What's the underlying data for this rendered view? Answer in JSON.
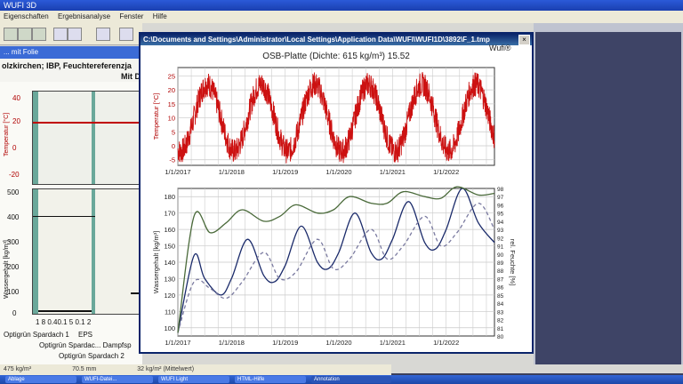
{
  "background_app": {
    "title": "WUFI 3D",
    "menu": [
      "Eigenschaften",
      "Ergebnisanalyse",
      "Fenster",
      "Hilfe"
    ],
    "tab_label": "... mit Folie",
    "sublabel_line1": "olzkirchen; IBP, Feuchtereferenzja",
    "sublabel_line2": "Mit D",
    "temperature_chart": {
      "ylabel": "Temperatur [°C]",
      "ticks": [
        "40",
        "20",
        "0",
        "-20"
      ]
    },
    "water_chart": {
      "ylabel": "Wassergehalt [kg/m³]",
      "ticks": [
        "500",
        "400",
        "300",
        "200",
        "100",
        "0"
      ]
    },
    "x_ticks": "1  8  0.40.1  5  0.1 2",
    "layer_labels": [
      "Optigrün Spardach 1",
      "Optigrün Spardac... Dampfsp",
      "Optigrün Spardach 2",
      "EPS"
    ],
    "status": [
      "475 kg/m³",
      "70.5 mm",
      "32 kg/m² (Mittelwert)"
    ]
  },
  "taskbar": {
    "items": [
      "Ablage",
      "WUFI-Datei...",
      "WUFI Light",
      "HTML-Hilfe",
      "Annotation"
    ]
  },
  "popup": {
    "window_title": "C:\\Documents and Settings\\Administrator\\Local Settings\\Application Data\\WUFI\\WUFI1D\\3892\\F_1.tmp",
    "close_label": "×",
    "brand": "Wufi®",
    "plot_title": "OSB-Platte (Dichte: 615 kg/m³) 15.52"
  },
  "chart_data": [
    {
      "type": "line",
      "title": "OSB-Platte (Dichte: 615 kg/m³) 15.52",
      "ylabel": "Temperatur [°C]",
      "yticks": [
        25,
        20,
        15,
        10,
        5,
        0,
        -5
      ],
      "ylim": [
        -7,
        28
      ],
      "xlim": [
        2017.0,
        2022.9
      ],
      "xticks": [
        "1/1/2017",
        "1/1/2018",
        "1/1/2019",
        "1/1/2020",
        "1/1/2021",
        "1/1/2022"
      ],
      "grid": true,
      "series": [
        {
          "color": "#cc1111",
          "annual_mean": 10,
          "amplitude": 12,
          "x": [
            2017.0,
            2017.1,
            2017.25,
            2017.5,
            2017.75,
            2018.0,
            2018.25,
            2018.5,
            2018.75,
            2019.0,
            2019.25,
            2019.5,
            2019.75,
            2020.0,
            2020.25,
            2020.5,
            2020.75,
            2021.0,
            2021.25,
            2021.5,
            2021.75,
            2022.0,
            2022.25,
            2022.5,
            2022.75,
            2022.9
          ],
          "y": [
            14,
            0,
            -2,
            22,
            12,
            -4,
            1,
            23,
            14,
            -3,
            0,
            23,
            12,
            -3,
            2,
            22,
            14,
            -2,
            3,
            22,
            13,
            -5,
            1,
            25,
            16,
            8
          ]
        }
      ]
    },
    {
      "type": "line",
      "ylabel": "Wassergehalt [kg/m³]",
      "ylabel_right": "rel. Feuchte [%]",
      "yticks": [
        180,
        170,
        160,
        150,
        140,
        130,
        120,
        110,
        100
      ],
      "ylim": [
        95,
        185
      ],
      "yticks_right": [
        98,
        97,
        96,
        95,
        94,
        93,
        92,
        91,
        90,
        89,
        88,
        87,
        86,
        85,
        84,
        83,
        82,
        81,
        80
      ],
      "xlim": [
        2017.0,
        2022.9
      ],
      "xticks": [
        "1/1/2017",
        "1/1/2018",
        "1/1/2019",
        "1/1/2020",
        "1/1/2021",
        "1/1/2022"
      ],
      "grid": true,
      "series": [
        {
          "color": "#1a2a6a",
          "style": "solid",
          "x": [
            2017.0,
            2017.3,
            2017.5,
            2017.8,
            2018.0,
            2018.3,
            2018.6,
            2018.8,
            2019.0,
            2019.3,
            2019.6,
            2019.8,
            2020.0,
            2020.3,
            2020.6,
            2020.8,
            2021.0,
            2021.3,
            2021.6,
            2021.8,
            2022.0,
            2022.3,
            2022.6,
            2022.9
          ],
          "y": [
            97,
            144,
            130,
            120,
            130,
            154,
            132,
            128,
            138,
            162,
            140,
            136,
            146,
            170,
            146,
            142,
            154,
            177,
            152,
            148,
            160,
            185,
            164,
            152
          ]
        },
        {
          "color": "#7a7aa0",
          "style": "dashed",
          "x": [
            2017.0,
            2017.3,
            2017.6,
            2017.9,
            2018.2,
            2018.6,
            2018.9,
            2019.2,
            2019.6,
            2019.9,
            2020.2,
            2020.6,
            2020.9,
            2021.2,
            2021.6,
            2021.9,
            2022.2,
            2022.6,
            2022.9
          ],
          "y": [
            97,
            128,
            124,
            118,
            128,
            146,
            130,
            134,
            154,
            136,
            142,
            160,
            142,
            150,
            168,
            150,
            158,
            176,
            160
          ]
        },
        {
          "color": "#4a6a3a",
          "style": "solid",
          "x": [
            2017.0,
            2017.3,
            2017.6,
            2017.9,
            2018.2,
            2018.6,
            2018.9,
            2019.2,
            2019.6,
            2019.9,
            2020.2,
            2020.6,
            2020.9,
            2021.2,
            2021.6,
            2021.9,
            2022.2,
            2022.6,
            2022.9
          ],
          "y": [
            97,
            168,
            158,
            164,
            172,
            165,
            168,
            175,
            170,
            172,
            180,
            176,
            176,
            183,
            180,
            179,
            186,
            181,
            182
          ]
        }
      ]
    }
  ]
}
